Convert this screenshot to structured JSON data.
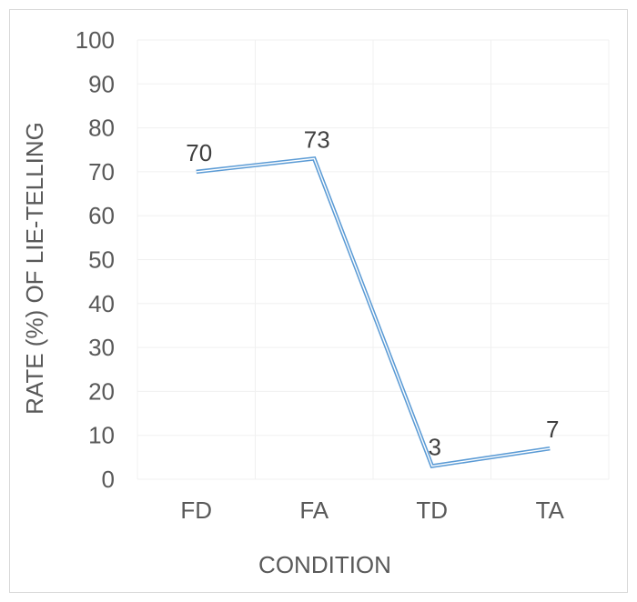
{
  "chart_data": {
    "type": "line",
    "categories": [
      "FD",
      "FA",
      "TD",
      "TA"
    ],
    "series": [
      {
        "values": [
          70,
          73,
          3,
          7
        ],
        "data_labels": [
          "70",
          "73",
          "3",
          "7"
        ],
        "color": "#5b9bd5",
        "line_style": "double"
      }
    ],
    "xlabel": "CONDITION",
    "ylabel": "RATE (%) OF LIE-TELLING",
    "ylim": [
      0,
      100
    ],
    "yticks": [
      "0",
      "10",
      "20",
      "30",
      "40",
      "50",
      "60",
      "70",
      "80",
      "90",
      "100"
    ],
    "grid": true,
    "gridline_color": "#f0f0f0",
    "legend": "none"
  }
}
